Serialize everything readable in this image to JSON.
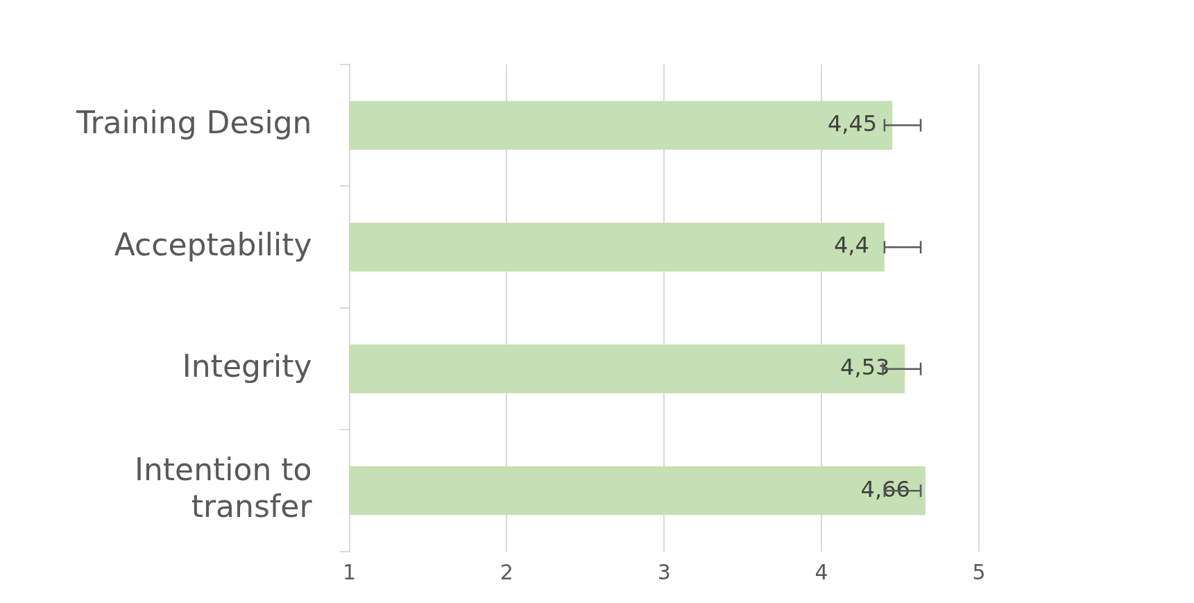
{
  "chart_data": {
    "type": "bar",
    "orientation": "horizontal",
    "categories": [
      "Training Design",
      "Acceptability",
      "Integrity",
      "Intention to transfer"
    ],
    "values": [
      4.45,
      4.4,
      4.53,
      4.66
    ],
    "value_labels": [
      "4,45",
      "4,4",
      "4,53",
      "4,66"
    ],
    "errors": [
      [
        4.4,
        4.63
      ],
      [
        4.4,
        4.63
      ],
      [
        4.39,
        4.63
      ],
      [
        4.4,
        4.63
      ]
    ],
    "color": "#c5e0b4",
    "xlim": [
      1,
      5
    ],
    "xticks": [
      1,
      2,
      3,
      4,
      5
    ],
    "grid": "x",
    "legend": false
  }
}
